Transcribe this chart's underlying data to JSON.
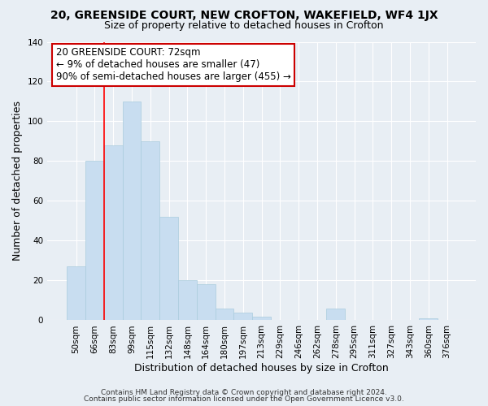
{
  "title": "20, GREENSIDE COURT, NEW CROFTON, WAKEFIELD, WF4 1JX",
  "subtitle": "Size of property relative to detached houses in Crofton",
  "xlabel": "Distribution of detached houses by size in Crofton",
  "ylabel": "Number of detached properties",
  "bar_color": "#c8ddf0",
  "bar_edge_color": "#aaccdd",
  "categories": [
    "50sqm",
    "66sqm",
    "83sqm",
    "99sqm",
    "115sqm",
    "132sqm",
    "148sqm",
    "164sqm",
    "180sqm",
    "197sqm",
    "213sqm",
    "229sqm",
    "246sqm",
    "262sqm",
    "278sqm",
    "295sqm",
    "311sqm",
    "327sqm",
    "343sqm",
    "360sqm",
    "376sqm"
  ],
  "values": [
    27,
    80,
    88,
    110,
    90,
    52,
    20,
    18,
    6,
    4,
    2,
    0,
    0,
    0,
    6,
    0,
    0,
    0,
    0,
    1,
    0
  ],
  "ylim": [
    0,
    140
  ],
  "yticks": [
    0,
    20,
    40,
    60,
    80,
    100,
    120,
    140
  ],
  "red_line_bar_index": 1,
  "annotation_line1": "20 GREENSIDE COURT: 72sqm",
  "annotation_line2": "← 9% of detached houses are smaller (47)",
  "annotation_line3": "90% of semi-detached houses are larger (455) →",
  "annotation_box_color": "#ffffff",
  "annotation_box_edge": "#cc0000",
  "footer_line1": "Contains HM Land Registry data © Crown copyright and database right 2024.",
  "footer_line2": "Contains public sector information licensed under the Open Government Licence v3.0.",
  "background_color": "#e8eef4",
  "plot_background": "#e8eef4",
  "grid_color": "#ffffff",
  "title_fontsize": 10,
  "subtitle_fontsize": 9,
  "axis_label_fontsize": 9,
  "tick_fontsize": 7.5,
  "annotation_fontsize": 8.5,
  "footer_fontsize": 6.5
}
